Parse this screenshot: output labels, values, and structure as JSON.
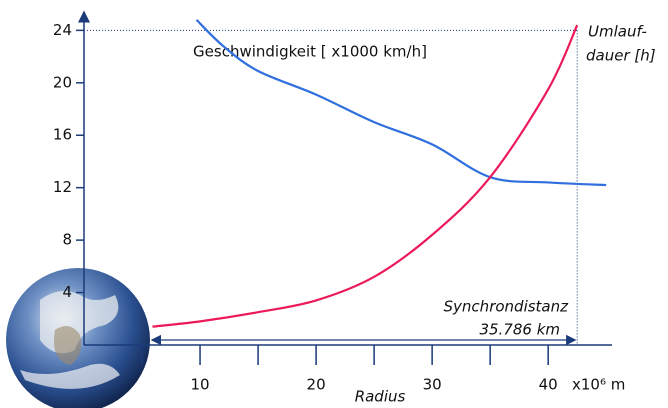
{
  "chart_data": {
    "type": "line",
    "x_label": "Radius",
    "x_unit": "x10⁶ m",
    "xlim": [
      0,
      45.5
    ],
    "ylim": [
      0,
      25.4
    ],
    "xticks": [
      10,
      20,
      30,
      40
    ],
    "xminorticks": [
      5,
      15,
      25,
      35
    ],
    "yticks": [
      4,
      8,
      12,
      16,
      20,
      24
    ],
    "sync_x": 42.5,
    "annotations": [
      "Synchrondistanz",
      "35.786 km"
    ],
    "series": [
      {
        "name": "Geschwindigkeit [ x1000 km/h]",
        "color": "#2f6fde",
        "x": [
          9.7,
          12,
          15,
          20,
          25,
          30,
          35,
          40,
          45
        ],
        "values": [
          24.8,
          22.8,
          20.9,
          19.1,
          17.0,
          15.3,
          12.8,
          12.4,
          12.2
        ]
      },
      {
        "name": [
          "Umlauf-",
          "dauer [h]"
        ],
        "color": "#ec1a5a",
        "x": [
          5.9,
          10,
          15,
          20,
          25,
          30,
          35,
          40,
          42.5
        ],
        "values": [
          1.4,
          1.8,
          2.5,
          3.4,
          5.2,
          8.4,
          12.8,
          19.5,
          24.4
        ]
      }
    ]
  }
}
